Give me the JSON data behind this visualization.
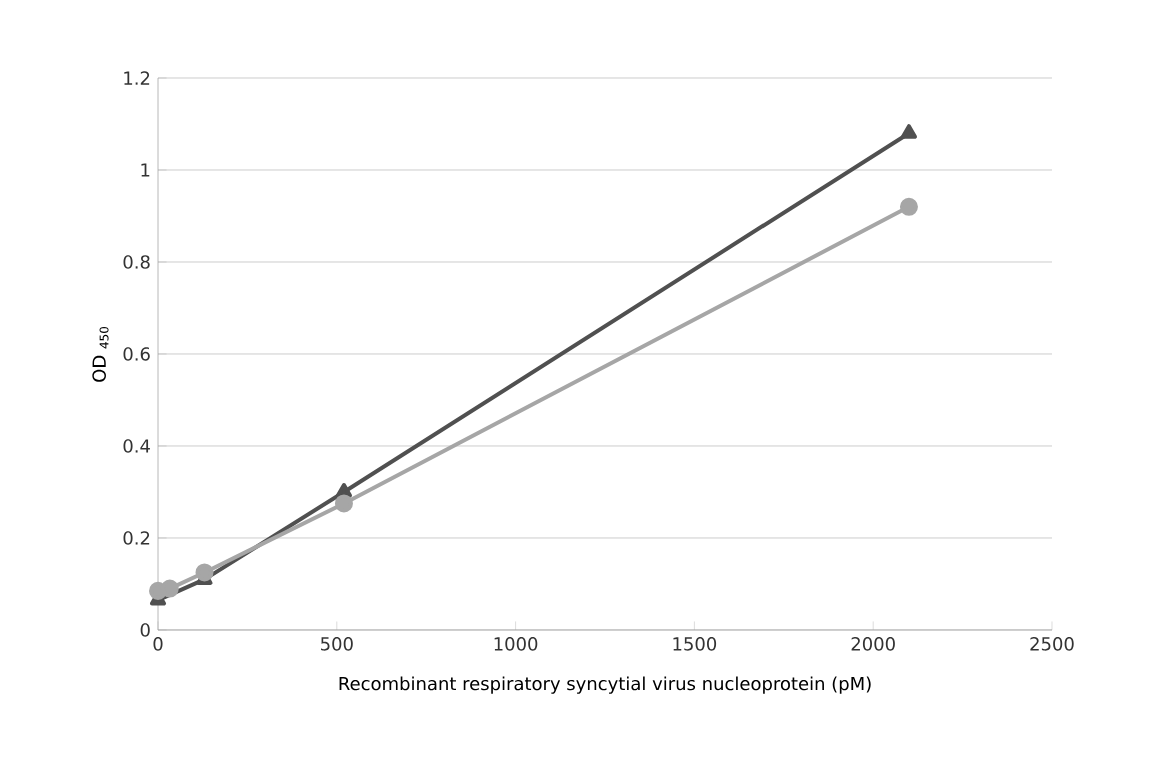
{
  "chart_data": {
    "type": "line",
    "xlabel": "Recombinant respiratory syncytial virus nucleoprotein (pM)",
    "ylabel": "OD $_{450}$",
    "x": [
      0,
      33,
      130,
      520,
      2100
    ],
    "series": [
      {
        "color": "#505050",
        "marker": "triangle",
        "values": [
          0.065,
          null,
          0.11,
          0.3,
          1.08
        ]
      },
      {
        "color": "#a6a6a6",
        "marker": "circle",
        "values": [
          0.085,
          0.09,
          0.125,
          0.275,
          0.92
        ]
      }
    ],
    "xlim": [
      0,
      2500
    ],
    "xticks": [
      0,
      500,
      1000,
      1500,
      2000,
      2500
    ],
    "ylim": [
      0,
      1.2
    ],
    "yticks": [
      0,
      0.2,
      0.4,
      0.6,
      0.8,
      1,
      1.2
    ],
    "grid": "y",
    "line_style": "solid"
  }
}
